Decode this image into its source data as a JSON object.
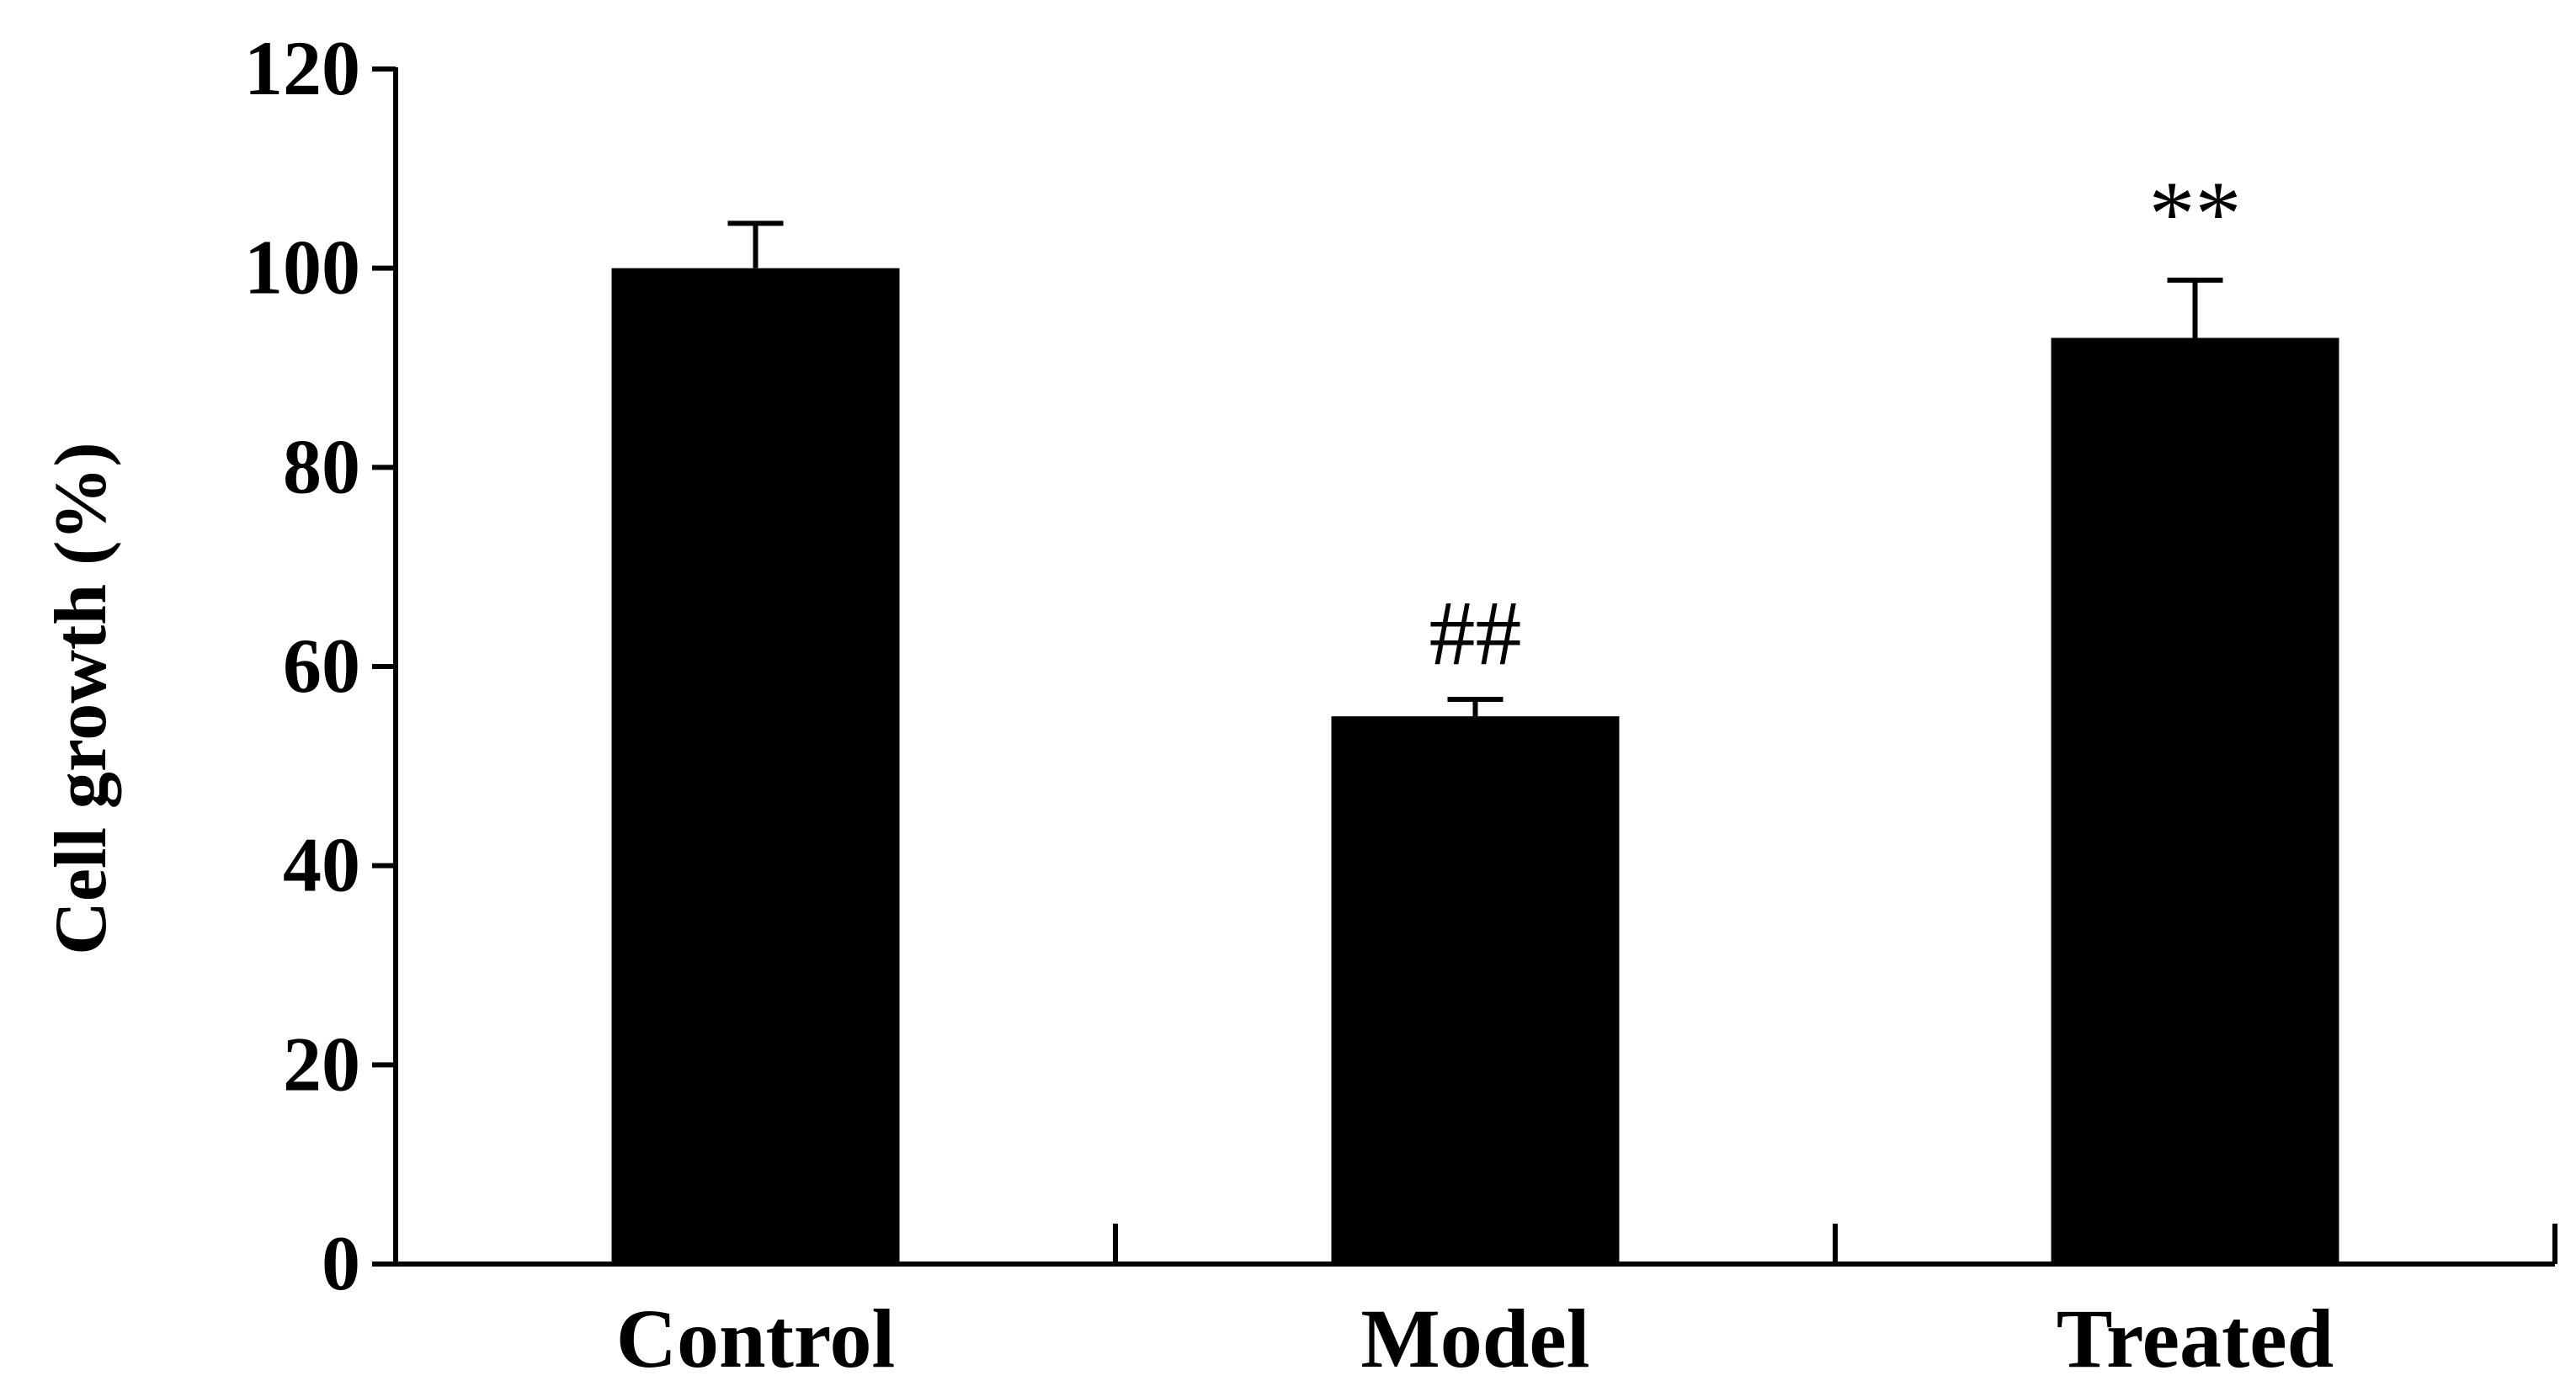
{
  "chart_data": {
    "type": "bar",
    "title": "",
    "xlabel": "",
    "ylabel": "Cell growth (%)",
    "categories": [
      "Control",
      "Model",
      "Treated"
    ],
    "values": [
      100,
      55,
      93
    ],
    "error_bars": [
      4.5,
      1.7,
      5.8
    ],
    "annotations": [
      "",
      "##",
      "**"
    ],
    "ylim": [
      0,
      120
    ],
    "yticks": [
      "0",
      "20",
      "40",
      "60",
      "80",
      "100",
      "120"
    ],
    "grid": false,
    "legend": "none",
    "bar_color": "#000000"
  }
}
